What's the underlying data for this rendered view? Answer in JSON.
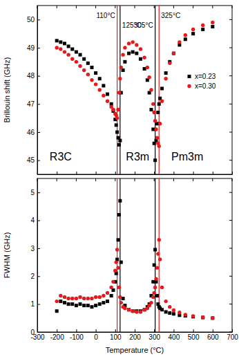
{
  "chart_data": [
    {
      "type": "scatter",
      "ylabel": "Brillouin shift (GHz)",
      "xlim": [
        -300,
        700
      ],
      "xticks": [
        -300,
        -200,
        -100,
        0,
        100,
        200,
        300,
        400,
        500,
        600,
        700
      ],
      "ylim": [
        44.5,
        50.5
      ],
      "yticks": [
        45,
        46,
        47,
        48,
        49,
        50
      ],
      "tick_labels": "y",
      "legend": "right",
      "x": [
        -200,
        -180,
        -160,
        -140,
        -120,
        -100,
        -80,
        -60,
        -40,
        -20,
        0,
        20,
        40,
        60,
        80,
        90,
        100,
        105,
        110,
        115,
        120,
        125,
        130,
        140,
        150,
        170,
        190,
        210,
        230,
        250,
        265,
        275,
        285,
        295,
        300,
        305,
        310,
        315,
        320,
        325,
        330,
        340,
        360,
        380,
        400,
        430,
        460,
        500,
        550,
        600
      ],
      "series": [
        {
          "name": "x=0.23",
          "color": "#000000",
          "marker": "square",
          "values": [
            49.25,
            49.2,
            49.15,
            49.05,
            48.95,
            48.85,
            48.75,
            48.6,
            48.45,
            48.3,
            48.1,
            47.9,
            47.65,
            47.35,
            47.0,
            46.75,
            46.45,
            46.25,
            46.0,
            45.8,
            45.55,
            45.7,
            47.4,
            48.2,
            48.5,
            48.8,
            48.85,
            48.8,
            48.6,
            48.25,
            47.85,
            47.4,
            46.8,
            46.1,
            45.6,
            45.0,
            45.7,
            46.3,
            46.7,
            47.0,
            47.2,
            47.55,
            48.1,
            48.5,
            48.8,
            49.1,
            49.3,
            49.5,
            49.65,
            49.75
          ]
        },
        {
          "name": "x=0.30",
          "color": "#e8191a",
          "marker": "circle",
          "values": [
            49.0,
            48.95,
            48.85,
            48.75,
            48.6,
            48.5,
            48.35,
            48.2,
            48.05,
            47.85,
            47.7,
            47.5,
            47.3,
            47.1,
            46.9,
            46.8,
            46.65,
            46.6,
            46.5,
            46.8,
            47.4,
            47.9,
            48.3,
            48.75,
            49.0,
            49.15,
            49.2,
            49.1,
            48.95,
            48.65,
            48.3,
            47.95,
            47.5,
            47.0,
            46.7,
            46.4,
            46.1,
            45.8,
            45.6,
            45.5,
            46.3,
            47.1,
            47.9,
            48.45,
            48.8,
            49.2,
            49.45,
            49.65,
            49.8,
            49.9
          ]
        }
      ],
      "vlines": [
        {
          "x": 110,
          "color": "#e8191a",
          "label": "110°C"
        },
        {
          "x": 125,
          "color": "#000000",
          "label": "125°C"
        },
        {
          "x": 305,
          "color": "#000000",
          "label": "305°C"
        },
        {
          "x": 325,
          "color": "#e8191a",
          "label": "325°C"
        }
      ],
      "phase_labels": [
        {
          "text": "R3C",
          "x": -180,
          "y": 45.0
        },
        {
          "text": "R3m",
          "x": 215,
          "y": 45.0
        },
        {
          "text": "Pm3m",
          "x": 470,
          "y": 45.0
        }
      ]
    },
    {
      "type": "scatter",
      "xlabel": "Temperature (°C)",
      "ylabel": "FWHM (GHz)",
      "xlim": [
        -300,
        700
      ],
      "xticks": [
        -300,
        -200,
        -100,
        0,
        100,
        200,
        300,
        400,
        500,
        600,
        700
      ],
      "ylim": [
        0,
        5.5
      ],
      "yticks": [
        0,
        1,
        2,
        3,
        4,
        5
      ],
      "x": [
        -200,
        -180,
        -160,
        -140,
        -120,
        -100,
        -80,
        -60,
        -40,
        -20,
        0,
        20,
        40,
        60,
        80,
        90,
        100,
        105,
        110,
        115,
        120,
        125,
        130,
        140,
        150,
        170,
        190,
        210,
        230,
        250,
        265,
        275,
        285,
        295,
        300,
        305,
        310,
        315,
        320,
        325,
        330,
        340,
        360,
        380,
        400,
        430,
        460,
        500,
        550,
        600
      ],
      "series": [
        {
          "name": "x=0.23",
          "color": "#000000",
          "marker": "square",
          "values": [
            0.75,
            1.1,
            1.05,
            1.0,
            1.0,
            0.95,
            1.0,
            0.95,
            0.95,
            0.9,
            0.95,
            1.0,
            1.05,
            1.1,
            1.3,
            1.5,
            1.8,
            2.1,
            2.6,
            3.3,
            4.2,
            4.7,
            2.5,
            1.2,
            0.95,
            0.8,
            0.75,
            0.75,
            0.75,
            0.8,
            0.9,
            1.0,
            1.3,
            1.8,
            2.4,
            2.95,
            1.8,
            1.3,
            1.0,
            0.9,
            0.85,
            0.8,
            0.72,
            0.68,
            0.65,
            0.6,
            0.58,
            0.55,
            0.52,
            0.5
          ]
        },
        {
          "name": "x=0.30",
          "color": "#e8191a",
          "marker": "circle",
          "values": [
            1.1,
            1.3,
            1.25,
            1.2,
            1.2,
            1.2,
            1.25,
            1.2,
            1.2,
            1.2,
            1.25,
            1.25,
            1.3,
            1.4,
            1.6,
            1.8,
            2.2,
            2.5,
            2.95,
            2.3,
            1.6,
            1.25,
            1.05,
            0.9,
            0.85,
            0.8,
            0.75,
            0.72,
            0.72,
            0.8,
            0.85,
            0.95,
            1.05,
            1.25,
            1.4,
            1.6,
            1.9,
            2.3,
            2.8,
            3.3,
            2.6,
            1.6,
            1.1,
            0.9,
            0.78,
            0.7,
            0.62,
            0.57,
            0.53,
            0.5
          ]
        }
      ],
      "vlines": [
        {
          "x": 110,
          "color": "#e8191a"
        },
        {
          "x": 125,
          "color": "#000000"
        },
        {
          "x": 305,
          "color": "#000000"
        },
        {
          "x": 325,
          "color": "#e8191a"
        }
      ]
    }
  ]
}
